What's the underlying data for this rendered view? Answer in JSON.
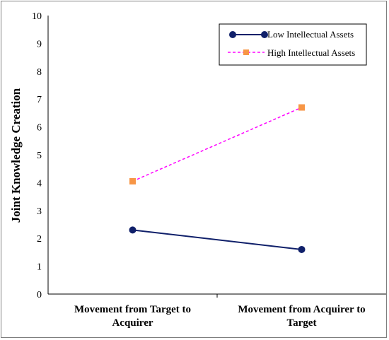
{
  "chart_data": {
    "type": "line",
    "title": "",
    "xlabel": "",
    "ylabel": "Joint Knowledge Creation",
    "categories": [
      [
        "Movement from Target to",
        "Acquirer"
      ],
      [
        "Movement from Acquirer to",
        "Target"
      ]
    ],
    "ylim": [
      0,
      10
    ],
    "yticks": [
      "0",
      "1",
      "2",
      "3",
      "4",
      "5",
      "6",
      "7",
      "8",
      "9",
      "10"
    ],
    "grid": false,
    "legend_position": "top-right",
    "series": [
      {
        "name": "Low Intellectual Assets",
        "values": [
          2.3,
          1.6
        ],
        "color": "#10206a",
        "line": "solid",
        "marker": "circle"
      },
      {
        "name": "High Intellectual Assets",
        "values": [
          4.05,
          6.7
        ],
        "color": "#ff00ff",
        "marker_color": "#f79646",
        "line": "dashed",
        "marker": "square"
      }
    ]
  }
}
